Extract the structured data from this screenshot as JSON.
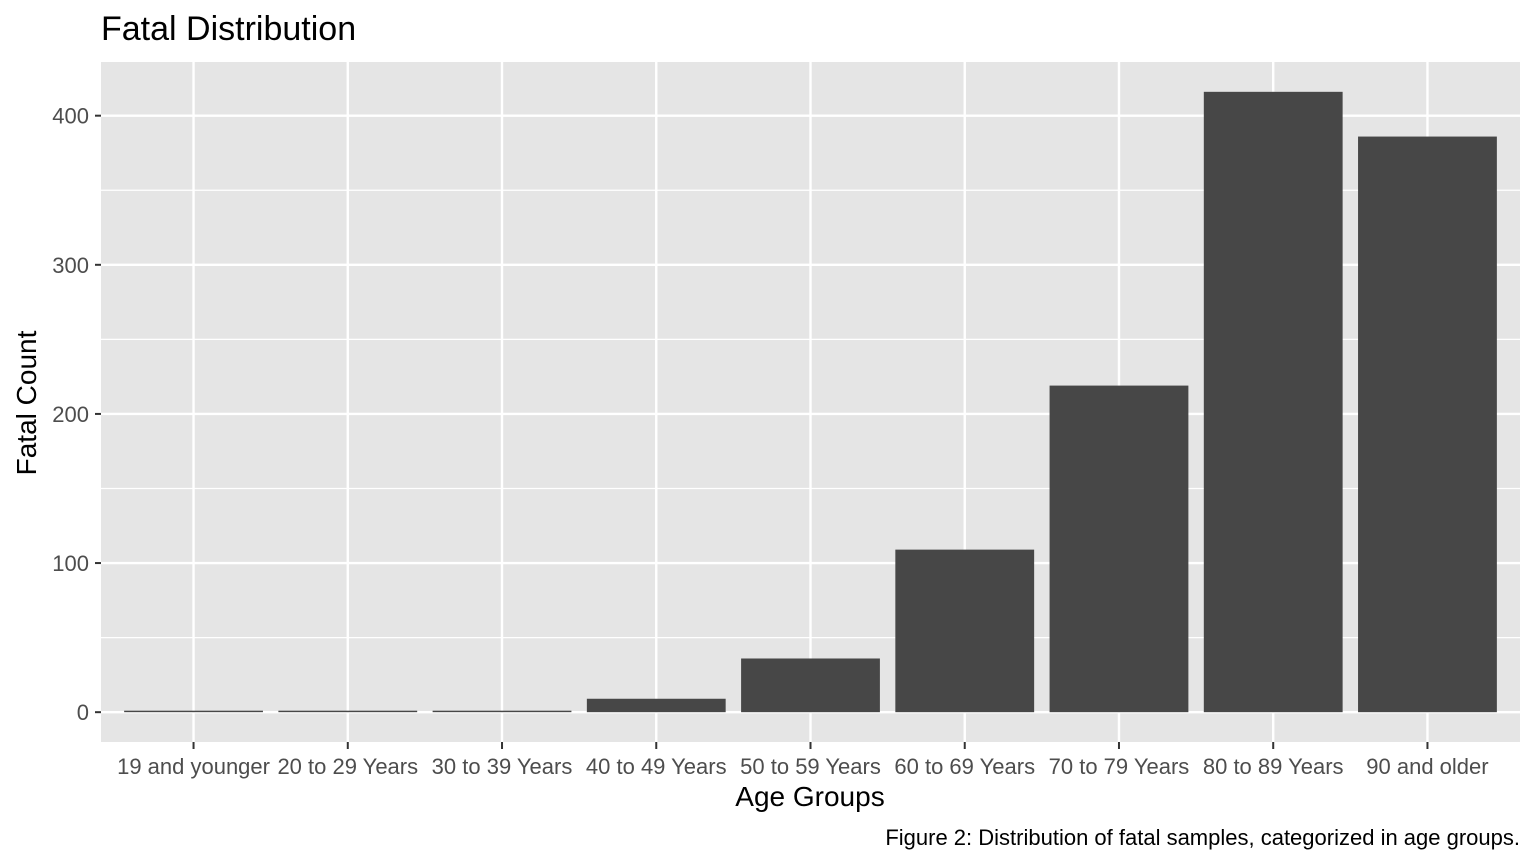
{
  "chart_data": {
    "type": "bar",
    "title": "Fatal Distribution",
    "xlabel": "Age Groups",
    "ylabel": "Fatal Count",
    "caption": "Figure 2: Distribution of fatal samples, categorized in age groups.",
    "categories": [
      "19 and younger",
      "20 to 29 Years",
      "30 to 39 Years",
      "40 to 49 Years",
      "50 to 59 Years",
      "60 to 69 Years",
      "70 to 79 Years",
      "80 to 89 Years",
      "90 and older"
    ],
    "values": [
      1,
      1,
      1,
      9,
      36,
      109,
      219,
      416,
      386
    ],
    "ylim": [
      -20,
      436
    ],
    "yticks": [
      0,
      100,
      200,
      300,
      400
    ],
    "ytick_labels": [
      "0",
      "100",
      "200",
      "300",
      "400"
    ],
    "grid": true,
    "colors": {
      "panel": "#e5e5e5",
      "grid": "#ffffff",
      "bar": "#474747",
      "tick_text": "#4d4d4d",
      "tick_mark": "#333333"
    }
  }
}
